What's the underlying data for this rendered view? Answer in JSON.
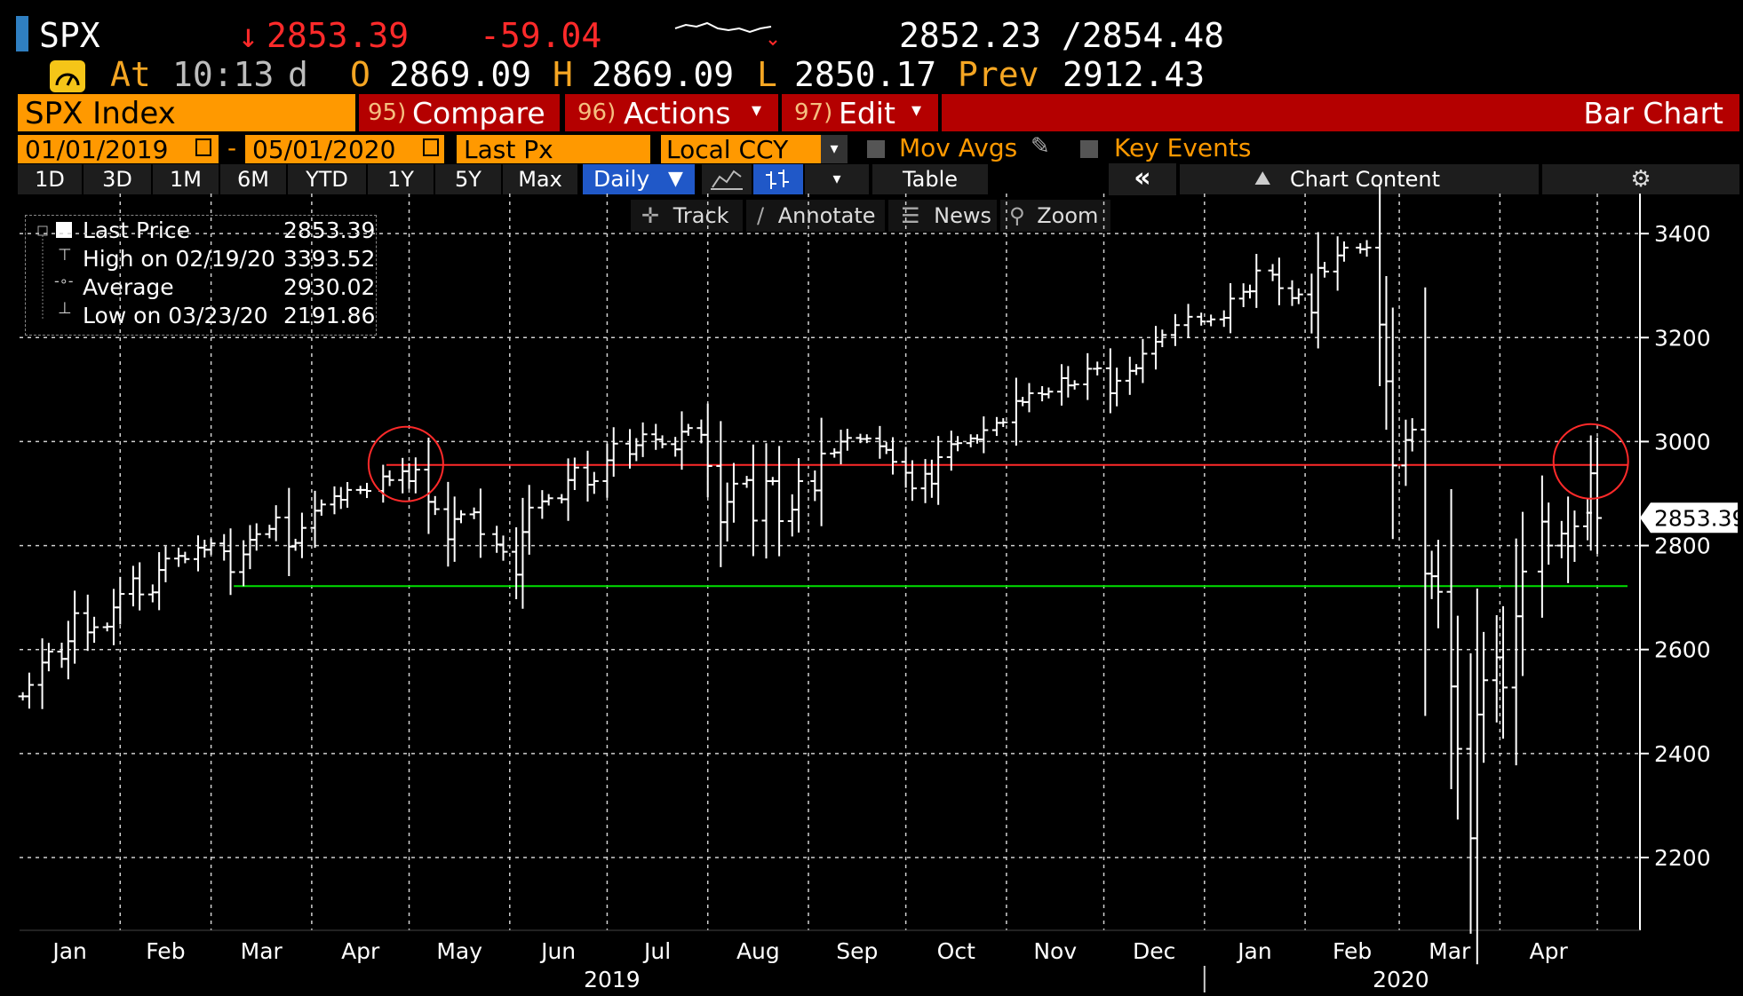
{
  "header": {
    "ticker": "SPX",
    "last": "2853.39",
    "change": "-59.04",
    "bid_ask": "2852.23 /2854.48",
    "at_label": "At",
    "time": "10:13",
    "time_suffix": "d",
    "open_label": "O",
    "open": "2869.09",
    "high_label": "H",
    "high": "2869.09",
    "low_label": "L",
    "low": "2850.17",
    "prev_label": "Prev",
    "prev": "2912.43",
    "down_arrow": "↓"
  },
  "menubar": {
    "security": "SPX Index",
    "compare": "Compare",
    "compare_num": "95)",
    "actions": "Actions",
    "actions_num": "96)",
    "edit": "Edit",
    "edit_num": "97)",
    "view": "Bar Chart"
  },
  "settings": {
    "start_date": "01/01/2019",
    "end_date": "05/01/2020",
    "date_sep": "-",
    "field": "Last Px",
    "currency": "Local CCY",
    "mov_avgs": "Mov Avgs",
    "key_events": "Key Events"
  },
  "periods": [
    "1D",
    "3D",
    "1M",
    "6M",
    "YTD",
    "1Y",
    "5Y",
    "Max"
  ],
  "toolbar": {
    "frequency": "Daily",
    "table": "Table",
    "collapse": "«",
    "chart_content": "Chart Content"
  },
  "tools": [
    "Track",
    "Annotate",
    "News",
    "Zoom"
  ],
  "legend": [
    {
      "label": "Last Price",
      "value": "2853.39"
    },
    {
      "label": "High on 02/19/20",
      "value": "3393.52"
    },
    {
      "label": "Average",
      "value": "2930.02"
    },
    {
      "label": "Low on 03/23/20",
      "value": "2191.86"
    }
  ],
  "colors": {
    "bars": "#ffffff",
    "resistance": "#ff2a2a",
    "support": "#00e000",
    "grid": "#d0d0d0",
    "accent_orange": "#ff9900",
    "menu_red": "#b40000"
  },
  "chart_data": {
    "type": "bar",
    "title": "SPX Index",
    "subtitle": "Bar Chart",
    "y_ticks": [
      "3400",
      "3200",
      "3000",
      "2800",
      "2600",
      "2400",
      "2200"
    ],
    "ylim": [
      2060,
      3460
    ],
    "last_price_tag": "2853.39",
    "x_month_labels": [
      "Jan",
      "Feb",
      "Mar",
      "Apr",
      "May",
      "Jun",
      "Jul",
      "Aug",
      "Sep",
      "Oct",
      "Nov",
      "Dec",
      "Jan",
      "Feb",
      "Mar",
      "Apr"
    ],
    "x_year_labels": [
      "2019",
      "2020"
    ],
    "x_range": [
      "2019-01-01",
      "2020-05-01"
    ],
    "reference_lines": [
      {
        "name": "resistance",
        "value": 2955,
        "color": "#ff2a2a"
      },
      {
        "name": "support",
        "value": 2722,
        "color": "#00e000"
      }
    ],
    "circles": [
      {
        "date": "2019-04-30",
        "value": 2950
      },
      {
        "date": "2020-04-29",
        "value": 2955
      }
    ],
    "series": [
      {
        "values": [
          [
            "2019-01-02",
            2510
          ],
          [
            "2019-01-04",
            2532
          ],
          [
            "2019-01-08",
            2575
          ],
          [
            "2019-01-10",
            2596
          ],
          [
            "2019-01-14",
            2582
          ],
          [
            "2019-01-16",
            2616
          ],
          [
            "2019-01-18",
            2670
          ],
          [
            "2019-01-22",
            2633
          ],
          [
            "2019-01-24",
            2643
          ],
          [
            "2019-01-28",
            2644
          ],
          [
            "2019-01-30",
            2681
          ],
          [
            "2019-02-01",
            2707
          ],
          [
            "2019-02-05",
            2737
          ],
          [
            "2019-02-07",
            2706
          ],
          [
            "2019-02-11",
            2710
          ],
          [
            "2019-02-13",
            2753
          ],
          [
            "2019-02-15",
            2775
          ],
          [
            "2019-02-19",
            2780
          ],
          [
            "2019-02-21",
            2774
          ],
          [
            "2019-02-25",
            2796
          ],
          [
            "2019-02-27",
            2792
          ],
          [
            "2019-03-01",
            2804
          ],
          [
            "2019-03-05",
            2789
          ],
          [
            "2019-03-07",
            2749
          ],
          [
            "2019-03-11",
            2783
          ],
          [
            "2019-03-13",
            2811
          ],
          [
            "2019-03-15",
            2822
          ],
          [
            "2019-03-19",
            2832
          ],
          [
            "2019-03-21",
            2854
          ],
          [
            "2019-03-25",
            2798
          ],
          [
            "2019-03-27",
            2805
          ],
          [
            "2019-03-29",
            2834
          ],
          [
            "2019-04-02",
            2867
          ],
          [
            "2019-04-04",
            2879
          ],
          [
            "2019-04-08",
            2895
          ],
          [
            "2019-04-10",
            2888
          ],
          [
            "2019-04-12",
            2907
          ],
          [
            "2019-04-16",
            2907
          ],
          [
            "2019-04-18",
            2905
          ],
          [
            "2019-04-23",
            2933
          ],
          [
            "2019-04-25",
            2926
          ],
          [
            "2019-04-29",
            2943
          ],
          [
            "2019-05-01",
            2924
          ],
          [
            "2019-05-03",
            2946
          ],
          [
            "2019-05-07",
            2884
          ],
          [
            "2019-05-09",
            2870
          ],
          [
            "2019-05-13",
            2812
          ],
          [
            "2019-05-15",
            2851
          ],
          [
            "2019-05-17",
            2860
          ],
          [
            "2019-05-21",
            2864
          ],
          [
            "2019-05-23",
            2822
          ],
          [
            "2019-05-28",
            2802
          ],
          [
            "2019-05-30",
            2788
          ],
          [
            "2019-06-03",
            2744
          ],
          [
            "2019-06-05",
            2826
          ],
          [
            "2019-06-07",
            2873
          ],
          [
            "2019-06-11",
            2885
          ],
          [
            "2019-06-13",
            2891
          ],
          [
            "2019-06-17",
            2889
          ],
          [
            "2019-06-19",
            2926
          ],
          [
            "2019-06-21",
            2950
          ],
          [
            "2019-06-25",
            2917
          ],
          [
            "2019-06-27",
            2924
          ],
          [
            "2019-07-01",
            2964
          ],
          [
            "2019-07-03",
            2996
          ],
          [
            "2019-07-08",
            2976
          ],
          [
            "2019-07-10",
            2993
          ],
          [
            "2019-07-12",
            3014
          ],
          [
            "2019-07-16",
            3004
          ],
          [
            "2019-07-18",
            2995
          ],
          [
            "2019-07-22",
            2985
          ],
          [
            "2019-07-24",
            3019
          ],
          [
            "2019-07-26",
            3026
          ],
          [
            "2019-07-30",
            3013
          ],
          [
            "2019-08-01",
            2953
          ],
          [
            "2019-08-05",
            2845
          ],
          [
            "2019-08-07",
            2884
          ],
          [
            "2019-08-09",
            2919
          ],
          [
            "2019-08-13",
            2926
          ],
          [
            "2019-08-15",
            2848
          ],
          [
            "2019-08-19",
            2924
          ],
          [
            "2019-08-21",
            2924
          ],
          [
            "2019-08-23",
            2847
          ],
          [
            "2019-08-27",
            2869
          ],
          [
            "2019-08-29",
            2924
          ],
          [
            "2019-09-03",
            2906
          ],
          [
            "2019-09-05",
            2977
          ],
          [
            "2019-09-09",
            2979
          ],
          [
            "2019-09-11",
            3000
          ],
          [
            "2019-09-13",
            3007
          ],
          [
            "2019-09-17",
            3005
          ],
          [
            "2019-09-19",
            3006
          ],
          [
            "2019-09-23",
            2991
          ],
          [
            "2019-09-25",
            2984
          ],
          [
            "2019-09-27",
            2961
          ],
          [
            "2019-10-01",
            2940
          ],
          [
            "2019-10-03",
            2910
          ],
          [
            "2019-10-07",
            2938
          ],
          [
            "2019-10-09",
            2919
          ],
          [
            "2019-10-11",
            2970
          ],
          [
            "2019-10-15",
            2995
          ],
          [
            "2019-10-17",
            2997
          ],
          [
            "2019-10-21",
            3006
          ],
          [
            "2019-10-23",
            3004
          ],
          [
            "2019-10-25",
            3022
          ],
          [
            "2019-10-29",
            3036
          ],
          [
            "2019-10-31",
            3037
          ],
          [
            "2019-11-04",
            3078
          ],
          [
            "2019-11-06",
            3076
          ],
          [
            "2019-11-08",
            3093
          ],
          [
            "2019-11-12",
            3091
          ],
          [
            "2019-11-14",
            3096
          ],
          [
            "2019-11-18",
            3122
          ],
          [
            "2019-11-20",
            3108
          ],
          [
            "2019-11-22",
            3110
          ],
          [
            "2019-11-26",
            3140
          ],
          [
            "2019-11-29",
            3141
          ],
          [
            "2019-12-03",
            3093
          ],
          [
            "2019-12-05",
            3117
          ],
          [
            "2019-12-09",
            3136
          ],
          [
            "2019-12-11",
            3141
          ],
          [
            "2019-12-13",
            3169
          ],
          [
            "2019-12-17",
            3192
          ],
          [
            "2019-12-19",
            3205
          ],
          [
            "2019-12-23",
            3224
          ],
          [
            "2019-12-27",
            3240
          ],
          [
            "2019-12-31",
            3231
          ],
          [
            "2020-01-03",
            3235
          ],
          [
            "2020-01-07",
            3238
          ],
          [
            "2020-01-09",
            3275
          ],
          [
            "2020-01-13",
            3288
          ],
          [
            "2020-01-15",
            3289
          ],
          [
            "2020-01-17",
            3329
          ],
          [
            "2020-01-22",
            3321
          ],
          [
            "2020-01-24",
            3295
          ],
          [
            "2020-01-28",
            3276
          ],
          [
            "2020-01-30",
            3283
          ],
          [
            "2020-02-03",
            3248
          ],
          [
            "2020-02-05",
            3334
          ],
          [
            "2020-02-07",
            3327
          ],
          [
            "2020-02-11",
            3358
          ],
          [
            "2020-02-13",
            3373
          ],
          [
            "2020-02-18",
            3370
          ],
          [
            "2020-02-20",
            3373
          ],
          [
            "2020-02-24",
            3225
          ],
          [
            "2020-02-26",
            3116
          ],
          [
            "2020-02-28",
            2954
          ],
          [
            "2020-03-03",
            3003
          ],
          [
            "2020-03-05",
            3023
          ],
          [
            "2020-03-09",
            2746
          ],
          [
            "2020-03-11",
            2741
          ],
          [
            "2020-03-13",
            2711
          ],
          [
            "2020-03-17",
            2529
          ],
          [
            "2020-03-19",
            2409
          ],
          [
            "2020-03-23",
            2237
          ],
          [
            "2020-03-25",
            2475
          ],
          [
            "2020-03-27",
            2541
          ],
          [
            "2020-03-31",
            2585
          ],
          [
            "2020-04-02",
            2527
          ],
          [
            "2020-04-06",
            2664
          ],
          [
            "2020-04-08",
            2750
          ],
          [
            "2020-04-14",
            2846
          ],
          [
            "2020-04-16",
            2800
          ],
          [
            "2020-04-20",
            2823
          ],
          [
            "2020-04-22",
            2799
          ],
          [
            "2020-04-24",
            2837
          ],
          [
            "2020-04-28",
            2863
          ],
          [
            "2020-04-29",
            2939
          ],
          [
            "2020-05-01",
            2853
          ]
        ]
      }
    ]
  }
}
